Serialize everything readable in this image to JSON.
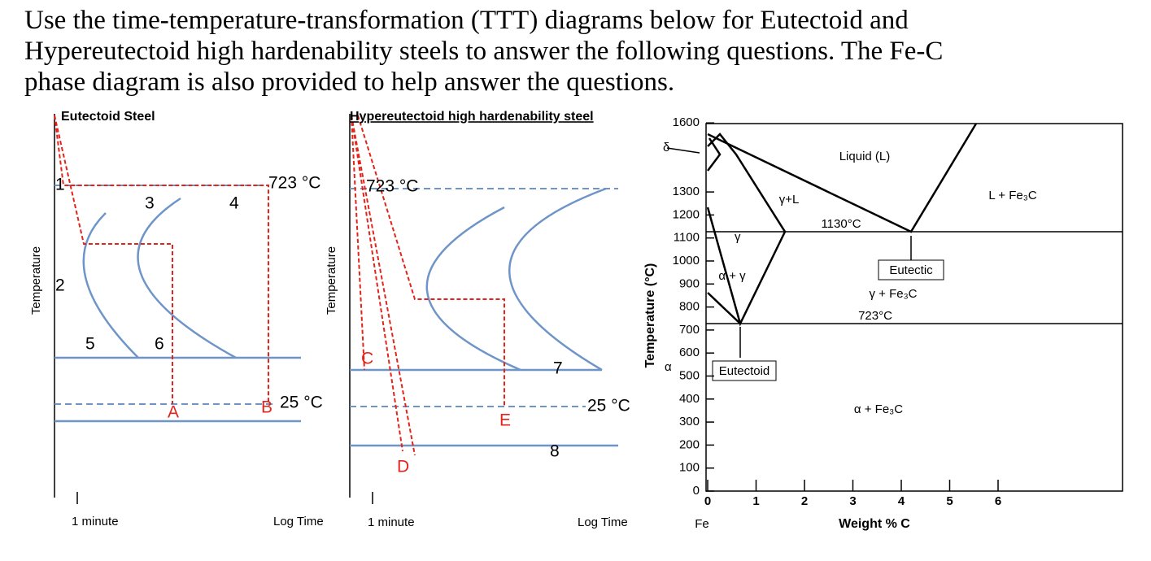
{
  "intro": [
    "Use the time-temperature-transformation (TTT) diagrams below for Eutectoid and",
    "Hypereutectoid high hardenability steels to answer the following questions.  The Fe-C",
    "phase diagram is also provided to help answer the questions."
  ],
  "eutectoid": {
    "title": "Eutectoid Steel",
    "y_label": "Temperature",
    "x_start": "1 minute",
    "x_end": "Log Time",
    "upper_temp": "723 °C",
    "lower_temp": "25 °C",
    "markers": [
      "1",
      "2",
      "3",
      "4",
      "5",
      "6"
    ],
    "points": [
      "A",
      "B"
    ]
  },
  "hypereutectoid": {
    "title": "Hypereutectoid high hardenability steel",
    "y_label": "Temperature",
    "x_start": "1 minute",
    "x_end": "Log Time",
    "upper_temp": "723 °C",
    "lower_temp": "25 °C",
    "markers": [
      "7",
      "8"
    ],
    "points": [
      "C",
      "D",
      "E"
    ]
  },
  "phase_diagram": {
    "y_label": "Temperature (°C)",
    "y_ticks": [
      1600,
      1300,
      1200,
      1100,
      1000,
      900,
      800,
      700,
      600,
      500,
      400,
      300,
      200,
      100,
      0
    ],
    "x_ticks": [
      0,
      1,
      2,
      3,
      4,
      5,
      6
    ],
    "x_label": "Weight  % C",
    "origin_label": "Fe",
    "phases": {
      "delta": "δ",
      "alpha": "α",
      "liquid": "Liquid (L)",
      "gamma_liquid": "γ+L",
      "liquid_cementite": "L + Fe₃C",
      "gamma": "γ",
      "alpha_gamma": "α + γ",
      "gamma_cementite": "γ + Fe₃C",
      "alpha_cementite": "α + Fe₃C"
    },
    "eutectic_temp": "1130°C",
    "eutectoid_temp": "723°C",
    "eutectic": "Eutectic",
    "eutectoid": "Eutectoid"
  }
}
